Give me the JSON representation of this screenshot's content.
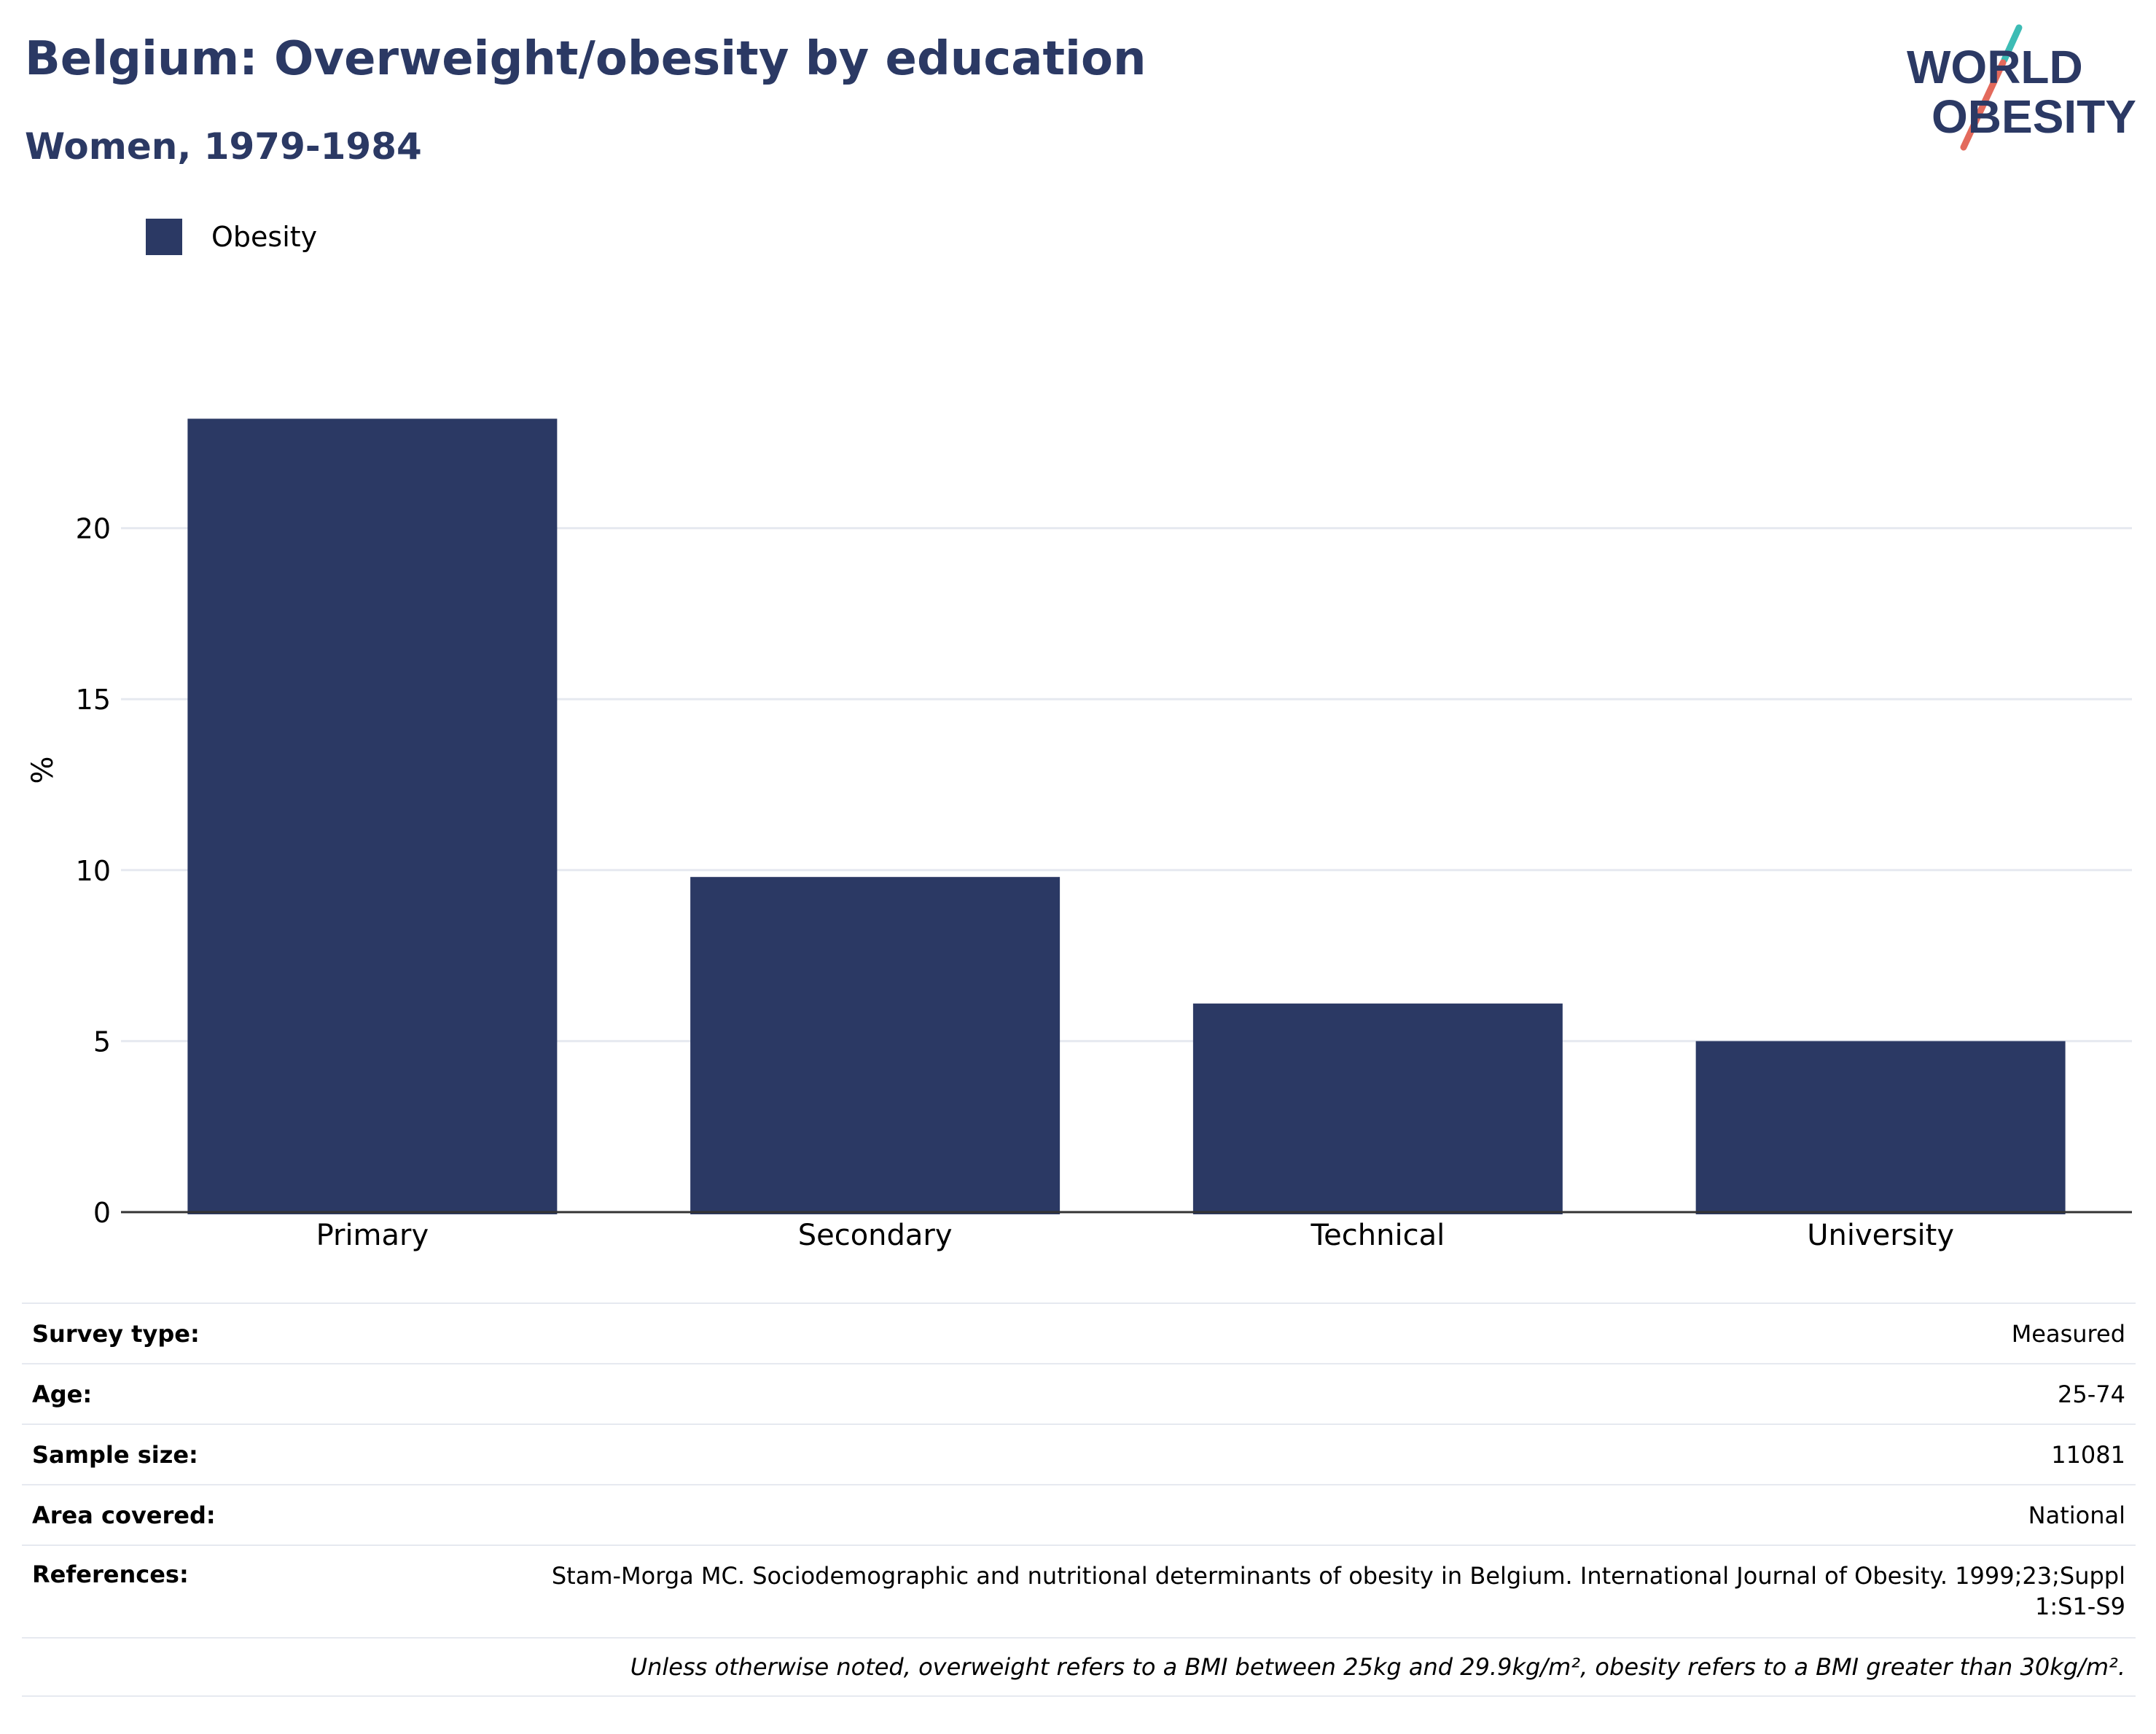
{
  "header": {
    "title": "Belgium: Overweight/obesity by education",
    "subtitle": "Women, 1979-1984"
  },
  "logo": {
    "line1": "WORLD",
    "line2": "OBESITY",
    "text_color": "#2b3964",
    "accent_teal": "#3dbcb5",
    "accent_red": "#e36a5c"
  },
  "chart_data": {
    "type": "bar",
    "title": "Belgium: Overweight/obesity by education",
    "subtitle": "Women, 1979-1984",
    "categories": [
      "Primary",
      "Secondary",
      "Technical",
      "University"
    ],
    "series": [
      {
        "name": "Obesity",
        "values": [
          23.2,
          9.8,
          6.1,
          5.0
        ],
        "color": "#2b3964"
      }
    ],
    "xlabel": "",
    "ylabel": "%",
    "ylim": [
      0,
      25
    ],
    "yticks": [
      0,
      5,
      10,
      15,
      20
    ],
    "grid": true,
    "legend": "top-left"
  },
  "meta": {
    "rows": [
      {
        "label": "Survey type:",
        "value": "Measured"
      },
      {
        "label": "Age:",
        "value": "25-74"
      },
      {
        "label": "Sample size:",
        "value": "11081"
      },
      {
        "label": "Area covered:",
        "value": "National"
      }
    ],
    "references_label": "References:",
    "references_value": "Stam-Morga MC. Sociodemographic and nutritional determinants of obesity in Belgium. International Journal of Obesity. 1999;23;Suppl 1:S1-S9",
    "note": "Unless otherwise noted, overweight refers to a BMI between 25kg and 29.9kg/m², obesity refers to a BMI greater than 30kg/m²."
  }
}
